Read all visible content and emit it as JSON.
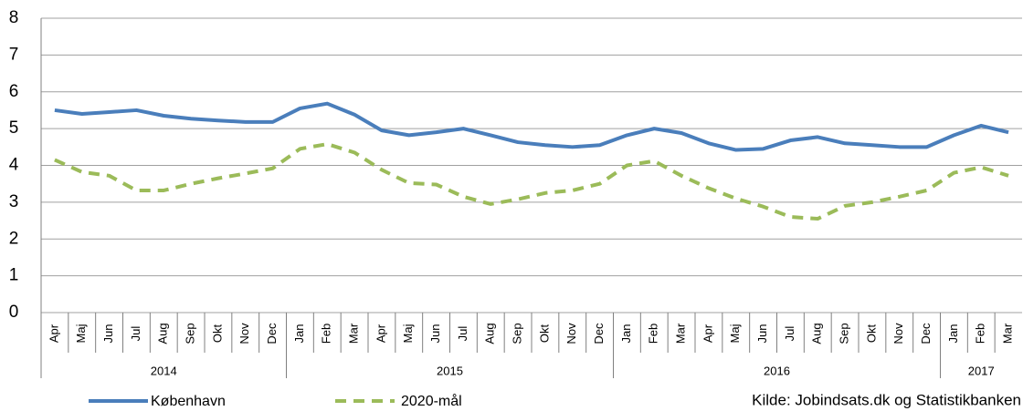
{
  "chart_data": {
    "type": "line",
    "categories": [
      "Apr",
      "Maj",
      "Jun",
      "Jul",
      "Aug",
      "Sep",
      "Okt",
      "Nov",
      "Dec",
      "Jan",
      "Feb",
      "Mar",
      "Apr",
      "Maj",
      "Jun",
      "Jul",
      "Aug",
      "Sep",
      "Okt",
      "Nov",
      "Dec",
      "Jan",
      "Feb",
      "Mar",
      "Apr",
      "Maj",
      "Jun",
      "Jul",
      "Aug",
      "Sep",
      "Okt",
      "Nov",
      "Dec",
      "Jan",
      "Feb",
      "Mar"
    ],
    "year_groups": [
      {
        "label": "2014",
        "months": 9
      },
      {
        "label": "2015",
        "months": 12
      },
      {
        "label": "2016",
        "months": 12
      },
      {
        "label": "2017",
        "months": 3
      }
    ],
    "series": [
      {
        "name": "København",
        "color": "#4a7ebb",
        "dashed": false,
        "values": [
          5.5,
          5.4,
          5.45,
          5.5,
          5.35,
          5.27,
          5.22,
          5.18,
          5.18,
          5.55,
          5.68,
          5.38,
          4.95,
          4.82,
          4.9,
          5.0,
          4.82,
          4.63,
          4.55,
          4.5,
          4.55,
          4.82,
          5.0,
          4.88,
          4.6,
          4.42,
          4.45,
          4.68,
          4.77,
          4.6,
          4.55,
          4.5,
          4.5,
          4.82,
          5.08,
          4.9
        ]
      },
      {
        "name": "2020-mål",
        "color": "#9bbb59",
        "dashed": true,
        "values": [
          4.15,
          3.82,
          3.72,
          3.32,
          3.32,
          3.5,
          3.65,
          3.78,
          3.92,
          4.45,
          4.58,
          4.35,
          3.88,
          3.52,
          3.48,
          3.15,
          2.95,
          3.08,
          3.25,
          3.32,
          3.5,
          4.0,
          4.12,
          3.72,
          3.38,
          3.1,
          2.88,
          2.6,
          2.55,
          2.9,
          3.0,
          3.15,
          3.32,
          3.8,
          3.95,
          3.72
        ]
      }
    ],
    "ylim": [
      0,
      8
    ],
    "yticks": [
      0,
      1,
      2,
      3,
      4,
      5,
      6,
      7,
      8
    ],
    "grid": true,
    "source": "Kilde: Jobindsats.dk og Statistikbanken"
  }
}
